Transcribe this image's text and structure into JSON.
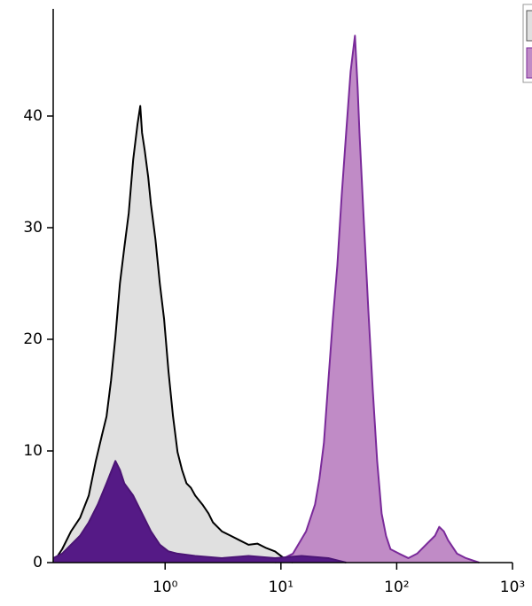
{
  "chart_data": {
    "type": "histogram-overlay",
    "xscale": "log",
    "xlim": [
      0.108,
      1000
    ],
    "ylim": [
      0,
      49.6
    ],
    "xticks": [
      {
        "value": 1,
        "label": "10⁰"
      },
      {
        "value": 10,
        "label": "10¹"
      },
      {
        "value": 100,
        "label": "10²"
      },
      {
        "value": 1000,
        "label": "10³"
      }
    ],
    "yticks": [
      0,
      10,
      20,
      30,
      40
    ],
    "series": [
      {
        "color": "#000000",
        "fill": "#e0e0e0",
        "x": [
          0.108,
          0.129,
          0.154,
          0.184,
          0.219,
          0.252,
          0.286,
          0.312,
          0.341,
          0.372,
          0.407,
          0.444,
          0.485,
          0.53,
          0.578,
          0.61,
          0.632,
          0.667,
          0.715,
          0.754,
          0.824,
          0.9,
          0.98,
          1.07,
          1.17,
          1.28,
          1.4,
          1.53,
          1.67,
          1.82,
          2.1,
          2.37,
          2.59,
          3.09,
          3.69,
          4.4,
          5.25,
          6.26,
          7.48,
          8.91,
          10.6,
          12.7
        ],
        "values": [
          0,
          1.2,
          2.8,
          4.0,
          6.0,
          9.1,
          11.5,
          13.1,
          16.3,
          20.2,
          25.0,
          28.2,
          31.3,
          36.1,
          39.3,
          40.9,
          38.5,
          36.9,
          34.5,
          32.1,
          29.0,
          25.0,
          21.8,
          17.1,
          13.1,
          9.9,
          8.3,
          7.1,
          6.7,
          6.0,
          5.2,
          4.4,
          3.6,
          2.8,
          2.4,
          2.0,
          1.6,
          1.7,
          1.3,
          1.0,
          0.4,
          0
        ]
      },
      {
        "color": "#7a2a9a",
        "fill": "#c08bc6",
        "x": [
          8.91,
          12.7,
          16.5,
          19.7,
          21.5,
          23.5,
          25.7,
          28.1,
          30.7,
          33.5,
          36.6,
          40.0,
          43.6,
          46.0,
          47.7,
          52.0,
          56.9,
          62.1,
          67.8,
          74.1,
          80.9,
          88.4,
          105,
          126,
          150,
          179,
          214,
          233,
          255,
          278,
          332,
          396,
          516
        ],
        "values": [
          0,
          0.8,
          2.8,
          5.2,
          7.5,
          10.7,
          16.3,
          21.8,
          26.6,
          32.9,
          38.5,
          44.0,
          47.2,
          42.5,
          38.5,
          30.6,
          22.6,
          15.5,
          9.1,
          4.4,
          2.4,
          1.2,
          0.8,
          0.4,
          0.8,
          1.6,
          2.4,
          3.2,
          2.8,
          2.0,
          0.8,
          0.4,
          0
        ]
      },
      {
        "color": "#4b1475",
        "fill": "#551a86",
        "x": [
          0.108,
          0.129,
          0.154,
          0.184,
          0.219,
          0.262,
          0.312,
          0.372,
          0.407,
          0.444,
          0.53,
          0.632,
          0.754,
          0.9,
          1.07,
          1.28,
          1.82,
          3.09,
          5.25,
          8.91,
          15.1,
          25.7,
          36.6
        ],
        "values": [
          0.4,
          0.8,
          1.6,
          2.4,
          3.6,
          5.2,
          7.1,
          9.1,
          8.3,
          7.1,
          6.0,
          4.4,
          2.8,
          1.6,
          1.0,
          0.8,
          0.6,
          0.4,
          0.6,
          0.4,
          0.6,
          0.4,
          0
        ]
      }
    ]
  }
}
